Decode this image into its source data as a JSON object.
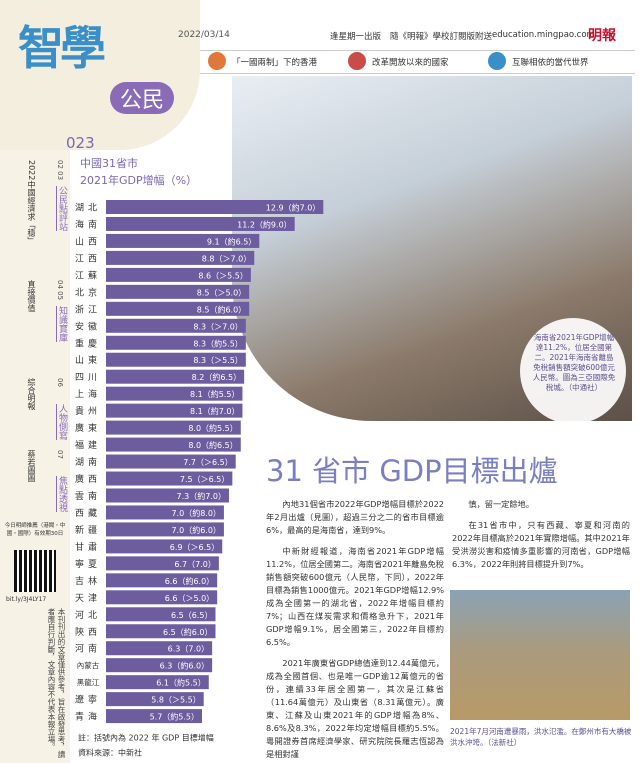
{
  "header": {
    "date": "2022/03/14",
    "issue": "逢星期一出版",
    "note": "隨《明報》學校訂閱版附送",
    "url": "education.mingpao.com",
    "brand": "明報",
    "logo": "智學",
    "logo_sub": "公民",
    "page": "023"
  },
  "nav": [
    "「一國兩制」下的香港",
    "改革開放以來的國家",
    "互聯相依的當代世界"
  ],
  "sidebar": [
    {
      "number": "02 03",
      "title": "公民點評站",
      "desc": "2022中國經濟求「穩」"
    },
    {
      "number": "04 05",
      "title": "知識寶庫",
      "desc": "直接價值"
    },
    {
      "number": "06",
      "title": "人物側寫",
      "desc": "綜合明報"
    },
    {
      "number": "07",
      "title": "焦點透視",
      "desc": "蔡若圖圖"
    }
  ],
  "qr": {
    "text": "今日明師推薦（港聞・中國・國際）有效期30日",
    "link": "bit.ly/3J4LY17"
  },
  "disclaimer": "本刊刊出的文章僅供參考，旨在啟發思考，讀者應自行判斷，文章內容不代表本報立場。",
  "headline": "31 省市 GDP目標出爐",
  "photo_caption": "海南省2021年GDP增幅達11.2%，位居全國第二。2021年海南省離島免稅銷售額突破600億元人民幣。圖為三亞國際免稅城。（中通社）",
  "article": {
    "col1": [
      "內地31個省市2022年GDP增幅目標於2022年2月出爐（見圖），超過三分之二的省市目標逾6%，最高的是海南省，達到9%。",
      "中新財經報道，海南省2021年GDP增幅11.2%，位居全國第二。海南省2021年離島免稅銷售額突破600億元（人民幣，下同），2022年目標為銷售1000億元。2021年GDP增幅12.9%成為全國第一的湖北省，2022年增幅目標約7%；山西在煤炭需求和價格急升下，2021年GDP增幅9.1%，居全國第三，2022年目標約6.5%。",
      "2021年廣東省GDP總值達到12.44萬億元，成為全國首個、也是唯一GDP逾12萬億元的省份，連續33年居全國第一，其次是江蘇省（11.64萬億元）及山東省（8.31萬億元）。廣東、江蘇及山東2021年的GDP增幅為8%、8.6%及8.3%，2022年均定增幅目標約5.5%。粵開證券首席經濟學家、研究院院長羅志恆認為是相對謹"
    ],
    "col2": [
      "慎，留一定餘地。",
      "在31省市中，只有西藏、寧夏和河南的2022年目標高於2021年實際增幅。其中2021年受洪澇災害和疫情多重影響的河南省，GDP增幅6.3%，2022年則將目標提升到7%。"
    ]
  },
  "photo2_caption": "2021年7月河南遭暴雨，洪水氾濫。在鄭州市有大橋被洪水沖垮。（法新社）",
  "chart_data": {
    "type": "bar",
    "orientation": "horizontal",
    "title": "中國31省市",
    "subtitle": "2021年GDP增幅（%）",
    "categories": [
      "湖北",
      "海南",
      "山西",
      "江西",
      "江蘇",
      "北京",
      "浙江",
      "安徽",
      "重慶",
      "山東",
      "四川",
      "上海",
      "貴州",
      "廣東",
      "福建",
      "湖南",
      "廣西",
      "雲南",
      "西藏",
      "新疆",
      "甘肅",
      "寧夏",
      "吉林",
      "天津",
      "河北",
      "陝西",
      "河南",
      "內蒙古",
      "黑龍江",
      "遼寧",
      "青海"
    ],
    "values": [
      12.9,
      11.2,
      9.1,
      8.8,
      8.6,
      8.5,
      8.5,
      8.3,
      8.3,
      8.3,
      8.2,
      8.1,
      8.1,
      8.0,
      8.0,
      7.7,
      7.5,
      7.3,
      7.0,
      7.0,
      6.9,
      6.7,
      6.6,
      6.6,
      6.5,
      6.5,
      6.3,
      6.3,
      6.1,
      5.8,
      5.7
    ],
    "value_labels": [
      "12.9（約7.0）",
      "11.2（約9.0）",
      "9.1（約6.5）",
      "8.8（＞7.0）",
      "8.6（＞5.5）",
      "8.5（＞5.0）",
      "8.5（約6.0）",
      "8.3（＞7.0）",
      "8.3（約5.5）",
      "8.3（＞5.5）",
      "8.2（約6.5）",
      "8.1（約5.5）",
      "8.1（約7.0）",
      "8.0（約5.5）",
      "8.0（約6.5）",
      "7.7（＞6.5）",
      "7.5（＞6.5）",
      "7.3（約7.0）",
      "7.0（約8.0）",
      "7.0（約6.0）",
      "6.9（＞6.5）",
      "6.7（7.0）",
      "6.6（約6.0）",
      "6.6（＞5.0）",
      "6.5（6.5）",
      "6.5（約6.0）",
      "6.3（7.0）",
      "6.3（約6.0）",
      "6.1（約5.5）",
      "5.8（＞5.5）",
      "5.7（約5.5）"
    ],
    "color": "#6d5c9e",
    "xlim": [
      0,
      13
    ],
    "note": "註：括號內為 2022 年 GDP 目標增幅",
    "source": "資料來源：中新社"
  }
}
